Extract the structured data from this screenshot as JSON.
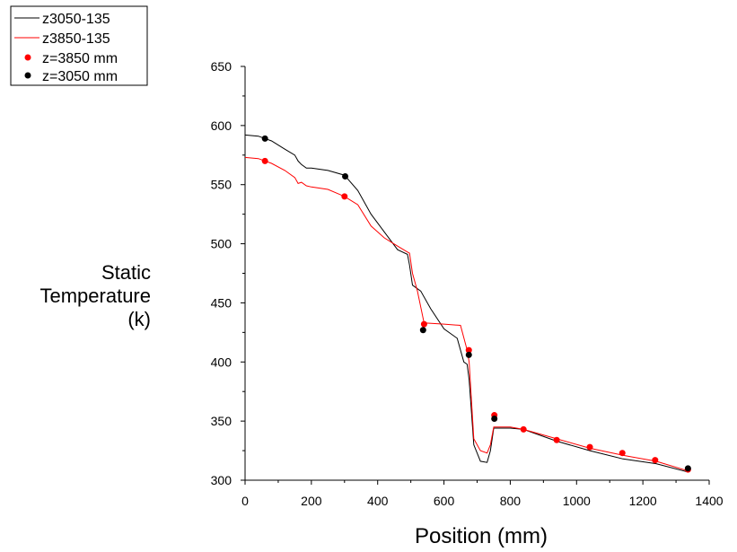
{
  "chart_data": {
    "type": "line",
    "xlabel": "Position (mm)",
    "ylabel_lines": [
      "Static",
      "Temperature",
      "(k)"
    ],
    "xlim": [
      0,
      1400
    ],
    "ylim": [
      300,
      650
    ],
    "xticks": [
      0,
      200,
      400,
      600,
      800,
      1000,
      1200,
      1400
    ],
    "yticks": [
      300,
      350,
      400,
      450,
      500,
      550,
      600,
      650
    ],
    "grid": false,
    "legend_position": "top-left",
    "series": [
      {
        "name": "z3050-135",
        "kind": "line",
        "color": "#000000",
        "x": [
          0,
          40,
          80,
          120,
          150,
          160,
          170,
          185,
          200,
          250,
          300,
          340,
          380,
          420,
          460,
          490,
          496,
          505,
          530,
          560,
          600,
          640,
          660,
          670,
          676,
          690,
          710,
          730,
          740,
          750,
          800,
          840,
          940,
          1040,
          1140,
          1240,
          1335
        ],
        "y": [
          592,
          591,
          587,
          580,
          575,
          570,
          567,
          564,
          564,
          562,
          558,
          545,
          525,
          510,
          495,
          491,
          482,
          465,
          460,
          445,
          428,
          420,
          400,
          398,
          385,
          330,
          316,
          315,
          325,
          344,
          344,
          343,
          333,
          325,
          318,
          314,
          307
        ]
      },
      {
        "name": "z3850-135",
        "kind": "line",
        "color": "#ff0000",
        "x": [
          0,
          40,
          80,
          120,
          150,
          160,
          170,
          185,
          200,
          250,
          300,
          340,
          380,
          420,
          460,
          490,
          496,
          505,
          520,
          540,
          600,
          650,
          670,
          676,
          690,
          710,
          730,
          740,
          750,
          800,
          840,
          940,
          1040,
          1140,
          1240,
          1335
        ],
        "y": [
          573,
          572,
          568,
          562,
          556,
          551,
          552,
          549,
          548,
          546,
          540,
          533,
          515,
          505,
          498,
          493,
          492,
          475,
          460,
          433,
          432,
          431,
          410,
          400,
          335,
          325,
          323,
          330,
          345,
          345,
          343,
          335,
          327,
          321,
          316,
          308
        ]
      },
      {
        "name": "z=3850 mm",
        "kind": "points",
        "color": "#ff0000",
        "x": [
          60,
          300,
          540,
          675,
          752,
          840,
          940,
          1040,
          1138,
          1237,
          1336
        ],
        "y": [
          570,
          540,
          432,
          410,
          355,
          343,
          334,
          328,
          323,
          317,
          309
        ]
      },
      {
        "name": "z=3050 mm",
        "kind": "points",
        "color": "#000000",
        "x": [
          60,
          302,
          537,
          675,
          752,
          1336
        ],
        "y": [
          589,
          557,
          427,
          406,
          352,
          310
        ]
      }
    ]
  }
}
